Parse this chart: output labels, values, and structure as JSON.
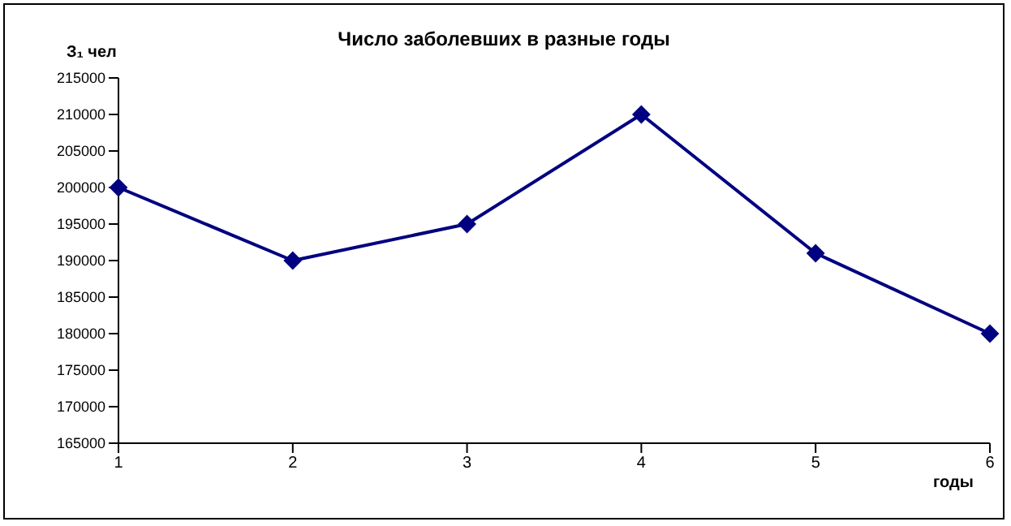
{
  "chart_data": {
    "type": "line",
    "title": "Число заболевших в разные годы",
    "ylabel": "З₁ чел",
    "xlabel": "годы",
    "categories": [
      "1",
      "2",
      "3",
      "4",
      "5",
      "6"
    ],
    "series": [
      {
        "color": "#000080",
        "values": [
          200000,
          190000,
          195000,
          210000,
          191000,
          180000
        ]
      }
    ],
    "ylim": [
      165000,
      215000
    ],
    "yticks": [
      165000,
      170000,
      175000,
      180000,
      185000,
      190000,
      195000,
      200000,
      205000,
      210000,
      215000
    ],
    "grid": false,
    "legend": false,
    "marker": "diamond",
    "line_style": "solid"
  }
}
